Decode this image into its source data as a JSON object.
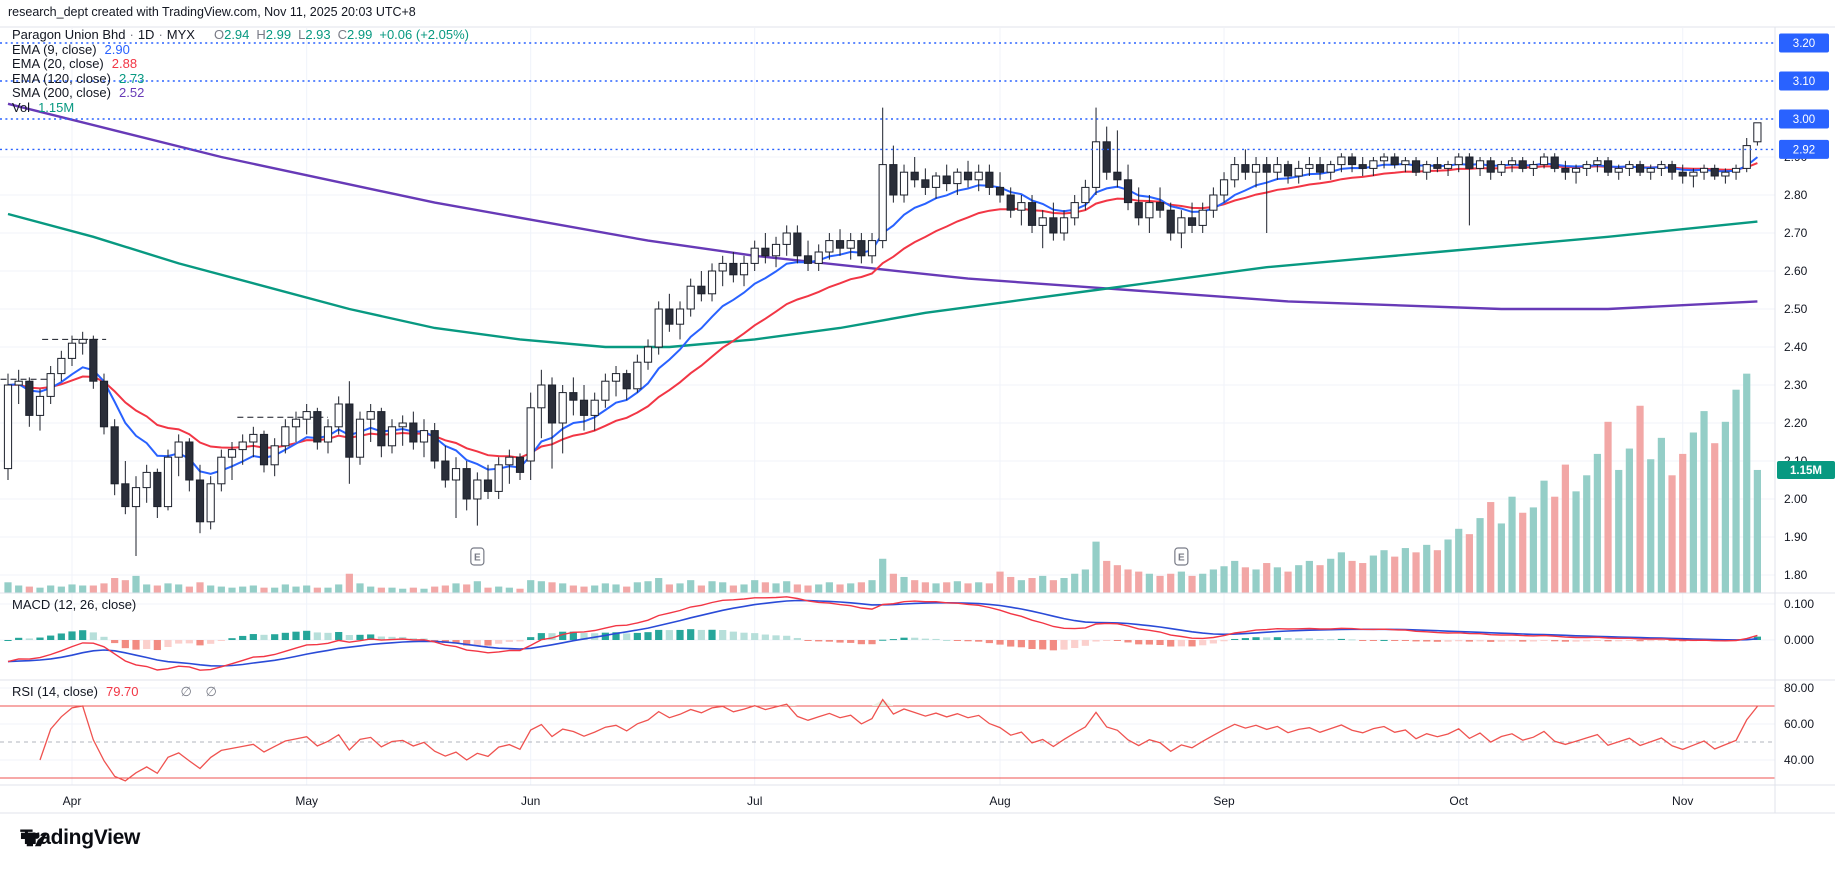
{
  "header": {
    "title": "research_dept created with TradingView.com, Nov 11, 2025 20:03 UTC+8"
  },
  "legend": {
    "symbol": "Paragon Union Bhd",
    "separator": "·",
    "interval": "1D",
    "exchange": "MYX",
    "ohlc": {
      "o_label": "O",
      "o": "2.94",
      "h_label": "H",
      "h": "2.99",
      "l_label": "L",
      "l": "2.93",
      "c_label": "C",
      "c": "2.99"
    },
    "change": "+0.06 (+2.05%)",
    "indicators": [
      {
        "label": "EMA (9, close)",
        "value": "2.90",
        "color": "#2962ff"
      },
      {
        "label": "EMA (20, close)",
        "value": "2.88",
        "color": "#f23645"
      },
      {
        "label": "EMA (120, close)",
        "value": "2.73",
        "color": "#089981"
      },
      {
        "label": "SMA (200, close)",
        "value": "2.52",
        "color": "#673ab7"
      }
    ],
    "vol_label": "Vol",
    "vol_value": "1.15M",
    "vol_color": "#089981"
  },
  "macd_legend": {
    "label": "MACD (12, 26, close)"
  },
  "rsi_legend": {
    "label": "RSI (14, close)",
    "value": "79.70",
    "nulls": "∅ ∅"
  },
  "footer": {
    "brand": "TradingView"
  },
  "chart_data": {
    "type": "candlestick",
    "title": "Paragon Union Bhd · 1D · MYX",
    "last_bar": {
      "open": 2.94,
      "high": 2.99,
      "low": 2.93,
      "close": 2.99,
      "change": "+0.06",
      "change_pct": "+2.05%",
      "volume": 1.15
    },
    "indicator_values": {
      "ema9": 2.9,
      "ema20": 2.88,
      "ema120": 2.73,
      "sma200": 2.52,
      "volume": "1.15M",
      "rsi14": 79.7
    },
    "colors": {
      "up_body": "#ffffff",
      "down_body": "#2a2e39",
      "candle_stroke": "#1c202b",
      "vol_up": "#94cec7",
      "vol_down": "#f2a7a6",
      "ema9": "#2962ff",
      "ema20": "#f23645",
      "ema120": "#089981",
      "sma200": "#673ab7",
      "macd_line": "#f23645",
      "macd_signal": "#2a4bd7",
      "hist_pos": "#26a69a",
      "hist_pos_light": "#b7dfda",
      "hist_neg": "#f28b82",
      "hist_neg_light": "#fbd0cd",
      "rsi_line": "#ef5350",
      "rsi_band": "#ef5350",
      "rsi_mid": "#b2b5be",
      "level_blue": "#2962ff",
      "vol_badge": "#089981",
      "grid": "#f0f3fa",
      "frame": "#e0e3eb",
      "axis_text": "#131722"
    },
    "price_axis_ticks": [
      "2.90",
      "2.80",
      "2.70",
      "2.60",
      "2.50",
      "2.40",
      "2.30",
      "2.20",
      "2.10",
      "2.00",
      "1.90",
      "1.80"
    ],
    "macd_axis_ticks": [
      "0.100",
      "0.000"
    ],
    "rsi_axis_ticks": [
      "80.00",
      "60.00",
      "40.00"
    ],
    "rsi_bands": {
      "upper": 70,
      "middle": 50,
      "lower": 30
    },
    "drawn_levels": [
      "3.20",
      "3.10",
      "3.00",
      "2.92"
    ],
    "volume_badge": "1.15M",
    "months": [
      {
        "label": "Apr",
        "day": 6
      },
      {
        "label": "May",
        "day": 28
      },
      {
        "label": "Jun",
        "day": 49
      },
      {
        "label": "Jul",
        "day": 70
      },
      {
        "label": "Aug",
        "day": 93
      },
      {
        "label": "Sep",
        "day": 114
      },
      {
        "label": "Oct",
        "day": 136
      },
      {
        "label": "Nov",
        "day": 157
      }
    ],
    "earnings_markers": {
      "label": "E",
      "days": [
        44,
        110
      ]
    },
    "dash_segments": [
      {
        "d1": 3.2,
        "d2": 9.2,
        "price": 2.42
      },
      {
        "d1": -0.7,
        "d2": 4.4,
        "price": 2.315
      },
      {
        "d1": 21.5,
        "d2": 30.0,
        "price": 2.215
      }
    ],
    "ema120_points": [
      [
        0,
        2.75
      ],
      [
        8,
        2.69
      ],
      [
        16,
        2.62
      ],
      [
        24,
        2.56
      ],
      [
        32,
        2.5
      ],
      [
        40,
        2.45
      ],
      [
        48,
        2.42
      ],
      [
        56,
        2.4
      ],
      [
        62,
        2.4
      ],
      [
        70,
        2.42
      ],
      [
        78,
        2.45
      ],
      [
        86,
        2.49
      ],
      [
        94,
        2.52
      ],
      [
        102,
        2.55
      ],
      [
        110,
        2.58
      ],
      [
        118,
        2.61
      ],
      [
        126,
        2.63
      ],
      [
        134,
        2.65
      ],
      [
        142,
        2.67
      ],
      [
        150,
        2.69
      ],
      [
        157,
        2.71
      ],
      [
        164,
        2.73
      ]
    ],
    "sma200_points": [
      [
        0,
        3.04
      ],
      [
        10,
        2.97
      ],
      [
        20,
        2.9
      ],
      [
        30,
        2.84
      ],
      [
        40,
        2.78
      ],
      [
        50,
        2.73
      ],
      [
        60,
        2.68
      ],
      [
        70,
        2.64
      ],
      [
        80,
        2.61
      ],
      [
        90,
        2.58
      ],
      [
        100,
        2.56
      ],
      [
        110,
        2.54
      ],
      [
        120,
        2.52
      ],
      [
        130,
        2.51
      ],
      [
        140,
        2.5
      ],
      [
        150,
        2.5
      ],
      [
        157,
        2.51
      ],
      [
        164,
        2.52
      ]
    ],
    "candles": [
      [
        2.08,
        2.33,
        2.05,
        2.3,
        0.1
      ],
      [
        2.3,
        2.34,
        2.25,
        2.31,
        0.07
      ],
      [
        2.31,
        2.32,
        2.19,
        2.22,
        0.06
      ],
      [
        2.22,
        2.29,
        2.18,
        2.27,
        0.05
      ],
      [
        2.27,
        2.35,
        2.25,
        2.33,
        0.07
      ],
      [
        2.33,
        2.39,
        2.31,
        2.37,
        0.06
      ],
      [
        2.37,
        2.43,
        2.35,
        2.41,
        0.08
      ],
      [
        2.41,
        2.44,
        2.38,
        2.42,
        0.07
      ],
      [
        2.42,
        2.43,
        2.29,
        2.31,
        0.07
      ],
      [
        2.31,
        2.33,
        2.17,
        2.19,
        0.09
      ],
      [
        2.19,
        2.21,
        2.01,
        2.04,
        0.14
      ],
      [
        2.04,
        2.1,
        1.96,
        1.98,
        0.12
      ],
      [
        1.98,
        2.06,
        1.85,
        2.03,
        0.16
      ],
      [
        2.03,
        2.09,
        1.99,
        2.07,
        0.08
      ],
      [
        2.07,
        2.08,
        1.95,
        1.98,
        0.07
      ],
      [
        1.98,
        2.13,
        1.97,
        2.11,
        0.09
      ],
      [
        2.11,
        2.17,
        2.06,
        2.15,
        0.08
      ],
      [
        2.15,
        2.16,
        2.02,
        2.05,
        0.06
      ],
      [
        2.05,
        2.09,
        1.91,
        1.94,
        0.1
      ],
      [
        1.94,
        2.06,
        1.92,
        2.04,
        0.07
      ],
      [
        2.04,
        2.13,
        2.02,
        2.11,
        0.06
      ],
      [
        2.11,
        2.15,
        2.05,
        2.13,
        0.05
      ],
      [
        2.13,
        2.17,
        2.09,
        2.15,
        0.06
      ],
      [
        2.15,
        2.19,
        2.11,
        2.17,
        0.07
      ],
      [
        2.17,
        2.18,
        2.07,
        2.09,
        0.05
      ],
      [
        2.09,
        2.16,
        2.06,
        2.14,
        0.05
      ],
      [
        2.14,
        2.21,
        2.12,
        2.19,
        0.08
      ],
      [
        2.19,
        2.23,
        2.15,
        2.21,
        0.06
      ],
      [
        2.21,
        2.25,
        2.17,
        2.23,
        0.07
      ],
      [
        2.23,
        2.24,
        2.13,
        2.15,
        0.05
      ],
      [
        2.15,
        2.21,
        2.12,
        2.19,
        0.05
      ],
      [
        2.19,
        2.27,
        2.17,
        2.25,
        0.08
      ],
      [
        2.25,
        2.31,
        2.04,
        2.11,
        0.18
      ],
      [
        2.11,
        2.23,
        2.09,
        2.21,
        0.09
      ],
      [
        2.21,
        2.25,
        2.15,
        2.23,
        0.06
      ],
      [
        2.23,
        2.24,
        2.11,
        2.14,
        0.05
      ],
      [
        2.14,
        2.21,
        2.12,
        2.19,
        0.05
      ],
      [
        2.19,
        2.22,
        2.14,
        2.2,
        0.04
      ],
      [
        2.2,
        2.23,
        2.13,
        2.15,
        0.05
      ],
      [
        2.15,
        2.21,
        2.11,
        2.18,
        0.04
      ],
      [
        2.18,
        2.2,
        2.08,
        2.1,
        0.06
      ],
      [
        2.1,
        2.14,
        2.03,
        2.05,
        0.07
      ],
      [
        2.05,
        2.11,
        1.95,
        2.08,
        0.09
      ],
      [
        2.08,
        2.1,
        1.97,
        2.0,
        0.08
      ],
      [
        2.0,
        2.07,
        1.93,
        2.05,
        0.11
      ],
      [
        2.05,
        2.09,
        2.0,
        2.02,
        0.05
      ],
      [
        2.02,
        2.11,
        2.0,
        2.09,
        0.06
      ],
      [
        2.09,
        2.13,
        2.04,
        2.11,
        0.05
      ],
      [
        2.11,
        2.12,
        2.05,
        2.07,
        0.04
      ],
      [
        2.1,
        2.28,
        2.05,
        2.24,
        0.12
      ],
      [
        2.24,
        2.34,
        2.16,
        2.3,
        0.11
      ],
      [
        2.3,
        2.32,
        2.08,
        2.2,
        0.1
      ],
      [
        2.2,
        2.3,
        2.12,
        2.28,
        0.09
      ],
      [
        2.28,
        2.32,
        2.22,
        2.26,
        0.07
      ],
      [
        2.26,
        2.3,
        2.18,
        2.22,
        0.06
      ],
      [
        2.22,
        2.28,
        2.18,
        2.26,
        0.07
      ],
      [
        2.26,
        2.33,
        2.24,
        2.31,
        0.09
      ],
      [
        2.31,
        2.35,
        2.27,
        2.33,
        0.08
      ],
      [
        2.33,
        2.34,
        2.26,
        2.29,
        0.06
      ],
      [
        2.29,
        2.38,
        2.28,
        2.36,
        0.1
      ],
      [
        2.36,
        2.42,
        2.34,
        2.4,
        0.11
      ],
      [
        2.4,
        2.52,
        2.38,
        2.5,
        0.14
      ],
      [
        2.5,
        2.54,
        2.44,
        2.46,
        0.08
      ],
      [
        2.46,
        2.52,
        2.42,
        2.5,
        0.09
      ],
      [
        2.5,
        2.58,
        2.48,
        2.56,
        0.12
      ],
      [
        2.56,
        2.6,
        2.52,
        2.54,
        0.07
      ],
      [
        2.54,
        2.62,
        2.52,
        2.6,
        0.11
      ],
      [
        2.6,
        2.64,
        2.56,
        2.62,
        0.1
      ],
      [
        2.62,
        2.65,
        2.57,
        2.59,
        0.07
      ],
      [
        2.59,
        2.64,
        2.56,
        2.62,
        0.08
      ],
      [
        2.62,
        2.68,
        2.6,
        2.66,
        0.12
      ],
      [
        2.66,
        2.7,
        2.62,
        2.64,
        0.1
      ],
      [
        2.64,
        2.69,
        2.61,
        2.67,
        0.09
      ],
      [
        2.67,
        2.72,
        2.64,
        2.7,
        0.11
      ],
      [
        2.7,
        2.72,
        2.62,
        2.64,
        0.08
      ],
      [
        2.64,
        2.68,
        2.6,
        2.62,
        0.07
      ],
      [
        2.62,
        2.67,
        2.6,
        2.65,
        0.08
      ],
      [
        2.65,
        2.7,
        2.63,
        2.68,
        0.1
      ],
      [
        2.68,
        2.71,
        2.64,
        2.66,
        0.08
      ],
      [
        2.66,
        2.7,
        2.63,
        2.68,
        0.09
      ],
      [
        2.68,
        2.7,
        2.62,
        2.64,
        0.1
      ],
      [
        2.64,
        2.7,
        2.62,
        2.68,
        0.12
      ],
      [
        2.68,
        3.03,
        2.66,
        2.88,
        0.32
      ],
      [
        2.88,
        2.93,
        2.78,
        2.8,
        0.18
      ],
      [
        2.8,
        2.88,
        2.78,
        2.86,
        0.15
      ],
      [
        2.86,
        2.9,
        2.82,
        2.84,
        0.12
      ],
      [
        2.84,
        2.87,
        2.8,
        2.82,
        0.1
      ],
      [
        2.82,
        2.86,
        2.79,
        2.85,
        0.09
      ],
      [
        2.85,
        2.88,
        2.81,
        2.83,
        0.1
      ],
      [
        2.83,
        2.87,
        2.8,
        2.86,
        0.11
      ],
      [
        2.86,
        2.89,
        2.82,
        2.84,
        0.09
      ],
      [
        2.84,
        2.88,
        2.81,
        2.86,
        0.1
      ],
      [
        2.86,
        2.88,
        2.8,
        2.82,
        0.09
      ],
      [
        2.82,
        2.86,
        2.78,
        2.8,
        0.2
      ],
      [
        2.8,
        2.82,
        2.74,
        2.76,
        0.15
      ],
      [
        2.76,
        2.8,
        2.72,
        2.78,
        0.12
      ],
      [
        2.78,
        2.8,
        2.7,
        2.72,
        0.14
      ],
      [
        2.72,
        2.76,
        2.66,
        2.74,
        0.16
      ],
      [
        2.74,
        2.78,
        2.68,
        2.7,
        0.12
      ],
      [
        2.7,
        2.76,
        2.68,
        2.74,
        0.14
      ],
      [
        2.74,
        2.8,
        2.72,
        2.78,
        0.18
      ],
      [
        2.78,
        2.84,
        2.76,
        2.82,
        0.22
      ],
      [
        2.82,
        3.03,
        2.8,
        2.94,
        0.48
      ],
      [
        2.94,
        2.98,
        2.84,
        2.86,
        0.3
      ],
      [
        2.86,
        2.97,
        2.82,
        2.84,
        0.26
      ],
      [
        2.84,
        2.88,
        2.76,
        2.78,
        0.22
      ],
      [
        2.78,
        2.82,
        2.72,
        2.74,
        0.2
      ],
      [
        2.74,
        2.8,
        2.7,
        2.78,
        0.18
      ],
      [
        2.78,
        2.82,
        2.74,
        2.76,
        0.16
      ],
      [
        2.76,
        2.78,
        2.68,
        2.7,
        0.18
      ],
      [
        2.7,
        2.76,
        2.66,
        2.74,
        0.2
      ],
      [
        2.74,
        2.78,
        2.7,
        2.72,
        0.16
      ],
      [
        2.72,
        2.78,
        2.7,
        2.76,
        0.18
      ],
      [
        2.76,
        2.82,
        2.74,
        2.8,
        0.22
      ],
      [
        2.8,
        2.86,
        2.78,
        2.84,
        0.25
      ],
      [
        2.84,
        2.9,
        2.82,
        2.88,
        0.3
      ],
      [
        2.88,
        2.92,
        2.84,
        2.86,
        0.24
      ],
      [
        2.86,
        2.9,
        2.82,
        2.88,
        0.22
      ],
      [
        2.88,
        2.9,
        2.7,
        2.86,
        0.28
      ],
      [
        2.86,
        2.9,
        2.84,
        2.88,
        0.24
      ],
      [
        2.88,
        2.89,
        2.83,
        2.85,
        0.2
      ],
      [
        2.85,
        2.89,
        2.83,
        2.87,
        0.26
      ],
      [
        2.87,
        2.9,
        2.85,
        2.88,
        0.3
      ],
      [
        2.88,
        2.9,
        2.84,
        2.86,
        0.26
      ],
      [
        2.86,
        2.89,
        2.84,
        2.88,
        0.32
      ],
      [
        2.88,
        2.91,
        2.86,
        2.9,
        0.38
      ],
      [
        2.9,
        2.91,
        2.86,
        2.88,
        0.3
      ],
      [
        2.88,
        2.9,
        2.85,
        2.87,
        0.28
      ],
      [
        2.87,
        2.9,
        2.85,
        2.89,
        0.35
      ],
      [
        2.89,
        2.91,
        2.87,
        2.9,
        0.4
      ],
      [
        2.9,
        2.91,
        2.87,
        2.88,
        0.34
      ],
      [
        2.88,
        2.9,
        2.86,
        2.89,
        0.42
      ],
      [
        2.89,
        2.9,
        2.85,
        2.86,
        0.38
      ],
      [
        2.86,
        2.89,
        2.84,
        2.88,
        0.45
      ],
      [
        2.88,
        2.9,
        2.86,
        2.87,
        0.4
      ],
      [
        2.87,
        2.89,
        2.85,
        2.88,
        0.5
      ],
      [
        2.88,
        2.91,
        2.86,
        2.9,
        0.6
      ],
      [
        2.9,
        2.91,
        2.72,
        2.87,
        0.55
      ],
      [
        2.87,
        2.9,
        2.85,
        2.89,
        0.7
      ],
      [
        2.89,
        2.9,
        2.84,
        2.86,
        0.85
      ],
      [
        2.86,
        2.89,
        2.85,
        2.88,
        0.65
      ],
      [
        2.88,
        2.9,
        2.86,
        2.89,
        0.9
      ],
      [
        2.89,
        2.9,
        2.86,
        2.87,
        0.75
      ],
      [
        2.87,
        2.89,
        2.85,
        2.88,
        0.8
      ],
      [
        2.88,
        2.91,
        2.87,
        2.9,
        1.05
      ],
      [
        2.9,
        2.91,
        2.86,
        2.87,
        0.9
      ],
      [
        2.87,
        2.89,
        2.84,
        2.86,
        1.2
      ],
      [
        2.86,
        2.88,
        2.83,
        2.87,
        0.95
      ],
      [
        2.87,
        2.89,
        2.85,
        2.88,
        1.1
      ],
      [
        2.88,
        2.9,
        2.86,
        2.89,
        1.3
      ],
      [
        2.89,
        2.9,
        2.85,
        2.86,
        1.6
      ],
      [
        2.86,
        2.88,
        2.84,
        2.87,
        1.15
      ],
      [
        2.87,
        2.89,
        2.85,
        2.88,
        1.35
      ],
      [
        2.88,
        2.89,
        2.85,
        2.86,
        1.75
      ],
      [
        2.86,
        2.88,
        2.84,
        2.87,
        1.25
      ],
      [
        2.87,
        2.89,
        2.85,
        2.88,
        1.45
      ],
      [
        2.88,
        2.89,
        2.84,
        2.86,
        1.1
      ],
      [
        2.86,
        2.88,
        2.83,
        2.85,
        1.3
      ],
      [
        2.85,
        2.87,
        2.82,
        2.86,
        1.5
      ],
      [
        2.86,
        2.88,
        2.84,
        2.87,
        1.7
      ],
      [
        2.87,
        2.88,
        2.84,
        2.85,
        1.4
      ],
      [
        2.85,
        2.87,
        2.83,
        2.86,
        1.6
      ],
      [
        2.86,
        2.88,
        2.84,
        2.87,
        1.9
      ],
      [
        2.87,
        2.95,
        2.86,
        2.93,
        2.05
      ],
      [
        2.94,
        2.99,
        2.93,
        2.99,
        1.15
      ]
    ]
  }
}
